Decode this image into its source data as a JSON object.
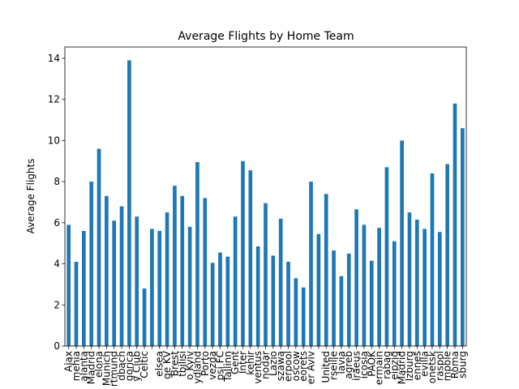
{
  "chart_data": {
    "type": "bar",
    "title": "Average Flights by Home Team",
    "ylabel": "Average Flights",
    "categories": [
      "Ajax",
      "menia",
      "alanta",
      "Madrid",
      "elona",
      "Munich",
      "rtmund",
      "dbach",
      "gorica",
      "y Club",
      "Celtic",
      null,
      "elsea",
      "ge KV",
      "Brest",
      "tbilisi",
      "o Kyiv",
      "ydland",
      "Porto",
      "vezda",
      "psi FC",
      "Tallinn",
      "Gent",
      "Inter",
      "kehir",
      "ventus",
      "nodar",
      "Lazio",
      "szawa",
      "erpool",
      "oscow",
      "eorets",
      "er Aviv",
      null,
      "United",
      "rseille",
      "lavia",
      "agreb",
      "iraeus",
      "icosia",
      "PAOK",
      "ermain",
      "rabag",
      "eipzig",
      "Madrid",
      "lzburg",
      "ennes",
      "evilla",
      "onetsk",
      "raspol",
      "mpole",
      "Roma",
      "sburg"
    ],
    "values": [
      5.9,
      4.1,
      5.6,
      8.0,
      9.6,
      7.3,
      6.1,
      6.8,
      13.9,
      6.3,
      2.8,
      5.7,
      5.6,
      6.5,
      7.8,
      7.3,
      5.8,
      8.95,
      7.2,
      4.05,
      4.55,
      4.35,
      6.3,
      9.0,
      8.55,
      4.85,
      6.95,
      4.4,
      6.2,
      4.1,
      3.3,
      2.85,
      8.0,
      5.45,
      7.4,
      4.65,
      3.4,
      4.5,
      6.65,
      5.9,
      4.15,
      5.75,
      8.7,
      5.1,
      10.0,
      6.5,
      6.15,
      5.7,
      8.4,
      5.55,
      8.85,
      11.8,
      10.6
    ],
    "color": "#1f77b4",
    "ylim": [
      0,
      14.55
    ],
    "yticks": [
      0,
      2,
      4,
      6,
      8,
      10,
      12,
      14
    ]
  }
}
